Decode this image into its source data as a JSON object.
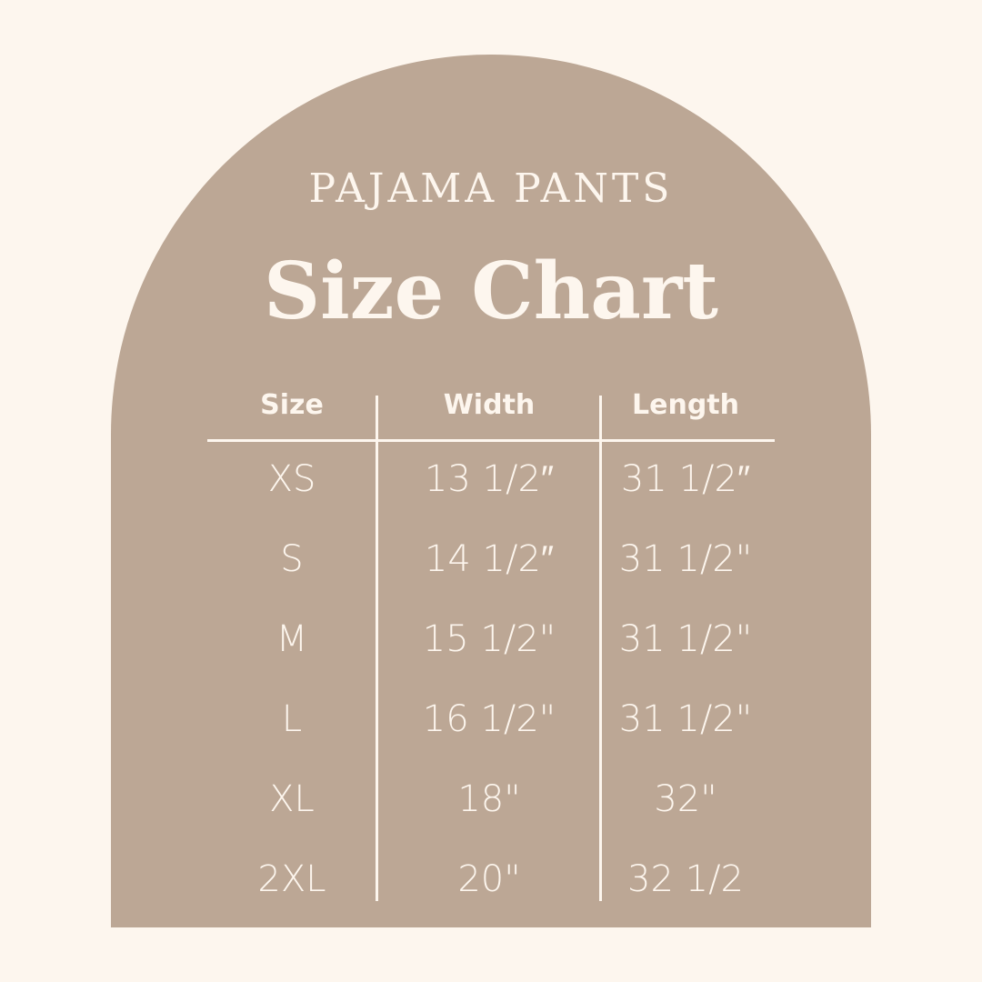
{
  "subtitle": "PAJAMA PANTS",
  "title": "Size Chart",
  "colors": {
    "background": "#fdf6ee",
    "arch": "#bca795",
    "text": "#fdf6ee"
  },
  "table": {
    "headers": [
      "Size",
      "Width",
      "Length"
    ],
    "rows": [
      [
        "XS",
        "13 1/2″",
        "31 1/2″"
      ],
      [
        "S",
        "14 1/2″",
        "31 1/2\""
      ],
      [
        "M",
        "15 1/2\"",
        "31 1/2\""
      ],
      [
        "L",
        "16 1/2\"",
        "31 1/2\""
      ],
      [
        "XL",
        "18\"",
        "32\""
      ],
      [
        "2XL",
        "20\"",
        "32 1/2"
      ]
    ]
  }
}
